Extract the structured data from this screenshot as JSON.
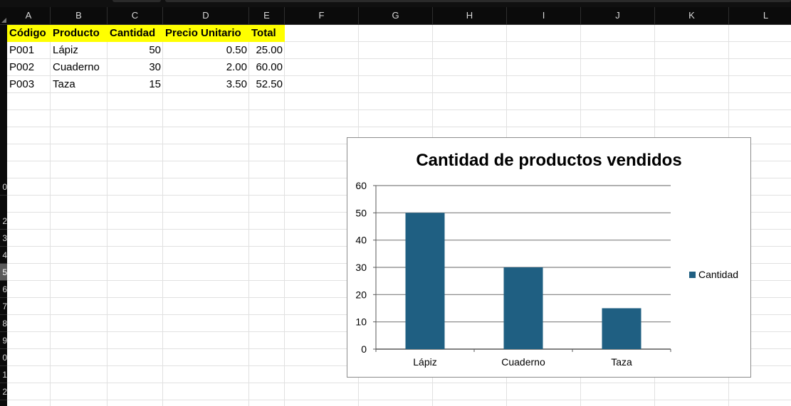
{
  "columns": [
    "A",
    "B",
    "C",
    "D",
    "E",
    "F",
    "G",
    "H",
    "I",
    "J",
    "K",
    "L"
  ],
  "rows": [
    "0",
    "2",
    "3",
    "4",
    "5",
    "6",
    "7",
    "8",
    "9",
    "0",
    "1",
    "2"
  ],
  "table": {
    "headers": [
      "Código",
      "Producto",
      "Cantidad",
      "Precio Unitario",
      "Total"
    ],
    "rows": [
      [
        "P001",
        "Lápiz",
        "50",
        "0.50",
        "25.00"
      ],
      [
        "P002",
        "Cuaderno",
        "30",
        "2.00",
        "60.00"
      ],
      [
        "P003",
        "Taza",
        "15",
        "3.50",
        "52.50"
      ]
    ]
  },
  "colors": {
    "header_fill": "#ffff00",
    "bar": "#1f5f82",
    "gridline": "#808080"
  },
  "chart_data": {
    "type": "bar",
    "title": "Cantidad de productos vendidos",
    "categories": [
      "Lápiz",
      "Cuaderno",
      "Taza"
    ],
    "series": [
      {
        "name": "Cantidad",
        "values": [
          50,
          30,
          15
        ]
      }
    ],
    "ylim": [
      0,
      60
    ],
    "yticks": [
      0,
      10,
      20,
      30,
      40,
      50,
      60
    ],
    "grid": true,
    "legend_position": "right"
  }
}
